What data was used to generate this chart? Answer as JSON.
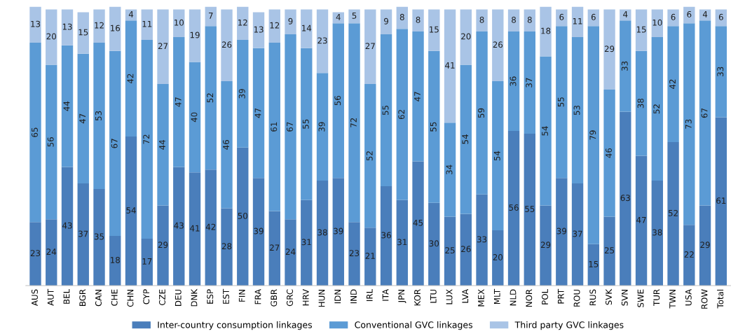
{
  "chart_data": {
    "type": "bar",
    "stacked": true,
    "data_labels": true,
    "legend": "bottom",
    "grid": false,
    "tick_labels": "x",
    "categories": [
      "AUS",
      "AUT",
      "BEL",
      "BGR",
      "CAN",
      "CHE",
      "CHN",
      "CYP",
      "CZE",
      "DEU",
      "DNK",
      "ESP",
      "EST",
      "FIN",
      "FRA",
      "GBR",
      "GRC",
      "HRV",
      "HUN",
      "IDN",
      "IND",
      "IRL",
      "ITA",
      "JPN",
      "KOR",
      "LTU",
      "LUX",
      "LVA",
      "MEX",
      "MLT",
      "NLD",
      "NOR",
      "POL",
      "PRT",
      "ROU",
      "RUS",
      "SVK",
      "SVN",
      "SWE",
      "TUR",
      "TWN",
      "USA",
      "ROW",
      "Total"
    ],
    "series": [
      {
        "name": "Inter-country consumption linkages",
        "color": "#4a7ebb",
        "values": [
          23,
          24,
          43,
          37,
          35,
          18,
          54,
          17,
          29,
          43,
          41,
          42,
          28,
          50,
          39,
          27,
          24,
          31,
          38,
          39,
          23,
          21,
          36,
          31,
          45,
          30,
          25,
          26,
          33,
          20,
          56,
          55,
          29,
          39,
          37,
          15,
          25,
          63,
          47,
          38,
          52,
          22,
          29,
          61
        ]
      },
      {
        "name": "Conventional GVC linkages",
        "color": "#5b9bd5",
        "values": [
          65,
          56,
          44,
          47,
          53,
          67,
          42,
          72,
          44,
          47,
          40,
          52,
          46,
          39,
          47,
          61,
          67,
          55,
          39,
          56,
          72,
          52,
          55,
          62,
          47,
          55,
          34,
          54,
          59,
          54,
          36,
          37,
          54,
          55,
          53,
          79,
          46,
          33,
          38,
          52,
          42,
          73,
          67,
          33
        ]
      },
      {
        "name": "Third party GVC linkages",
        "color": "#a9c4e6",
        "values": [
          13,
          20,
          13,
          15,
          12,
          16,
          4,
          11,
          27,
          10,
          19,
          7,
          26,
          12,
          13,
          12,
          9,
          14,
          23,
          4,
          5,
          27,
          9,
          8,
          8,
          15,
          41,
          20,
          8,
          26,
          8,
          8,
          18,
          6,
          11,
          6,
          29,
          4,
          15,
          10,
          6,
          6,
          4,
          6
        ]
      }
    ]
  }
}
